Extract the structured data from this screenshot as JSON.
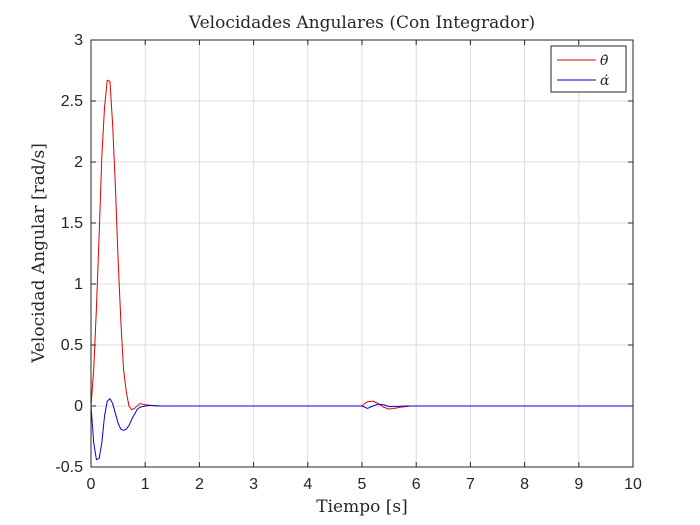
{
  "chart_data": {
    "type": "line",
    "title": "Velocidades Angulares (Con Integrador)",
    "xlabel": "Tiempo [s]",
    "ylabel": "Velocidad Angular [rad/s]",
    "xlim": [
      0,
      10
    ],
    "ylim": [
      -0.5,
      3
    ],
    "xticks": [
      "0",
      "1",
      "2",
      "3",
      "4",
      "5",
      "6",
      "7",
      "8",
      "9",
      "10"
    ],
    "yticks": [
      "-0.5",
      "0",
      "0.5",
      "1",
      "1.5",
      "2",
      "2.5",
      "3"
    ],
    "grid": true,
    "legend_position": "top-right",
    "series": [
      {
        "name": "θ̇",
        "color": "#e00000",
        "points": [
          [
            0,
            0
          ],
          [
            0.05,
            0.3
          ],
          [
            0.1,
            0.8
          ],
          [
            0.15,
            1.4
          ],
          [
            0.2,
            2.05
          ],
          [
            0.25,
            2.45
          ],
          [
            0.3,
            2.67
          ],
          [
            0.35,
            2.66
          ],
          [
            0.4,
            2.3
          ],
          [
            0.45,
            1.8
          ],
          [
            0.5,
            1.2
          ],
          [
            0.55,
            0.7
          ],
          [
            0.6,
            0.3
          ],
          [
            0.65,
            0.12
          ],
          [
            0.7,
            0.0
          ],
          [
            0.75,
            -0.03
          ],
          [
            0.8,
            -0.02
          ],
          [
            0.9,
            0.02
          ],
          [
            1.0,
            0.01
          ],
          [
            1.2,
            0.0
          ],
          [
            5.0,
            0.0
          ],
          [
            5.05,
            0.02
          ],
          [
            5.1,
            0.035
          ],
          [
            5.2,
            0.04
          ],
          [
            5.3,
            0.02
          ],
          [
            5.4,
            -0.01
          ],
          [
            5.5,
            -0.025
          ],
          [
            5.6,
            -0.02
          ],
          [
            5.7,
            -0.01
          ],
          [
            5.9,
            0.0
          ],
          [
            10,
            0.0
          ]
        ]
      },
      {
        "name": "α̇",
        "color": "#0000e0",
        "points": [
          [
            0,
            0
          ],
          [
            0.05,
            -0.3
          ],
          [
            0.1,
            -0.44
          ],
          [
            0.15,
            -0.43
          ],
          [
            0.2,
            -0.3
          ],
          [
            0.25,
            -0.08
          ],
          [
            0.3,
            0.04
          ],
          [
            0.35,
            0.06
          ],
          [
            0.4,
            0.02
          ],
          [
            0.45,
            -0.06
          ],
          [
            0.5,
            -0.14
          ],
          [
            0.55,
            -0.19
          ],
          [
            0.6,
            -0.2
          ],
          [
            0.65,
            -0.19
          ],
          [
            0.7,
            -0.16
          ],
          [
            0.75,
            -0.11
          ],
          [
            0.8,
            -0.07
          ],
          [
            0.85,
            -0.03
          ],
          [
            0.9,
            -0.01
          ],
          [
            1.0,
            0.0
          ],
          [
            1.1,
            0.005
          ],
          [
            1.3,
            0.0
          ],
          [
            5.0,
            0.0
          ],
          [
            5.05,
            -0.01
          ],
          [
            5.1,
            -0.02
          ],
          [
            5.2,
            0.0
          ],
          [
            5.3,
            0.015
          ],
          [
            5.4,
            0.01
          ],
          [
            5.5,
            -0.005
          ],
          [
            5.6,
            -0.005
          ],
          [
            5.8,
            0.0
          ],
          [
            10,
            0.0
          ]
        ]
      }
    ]
  }
}
